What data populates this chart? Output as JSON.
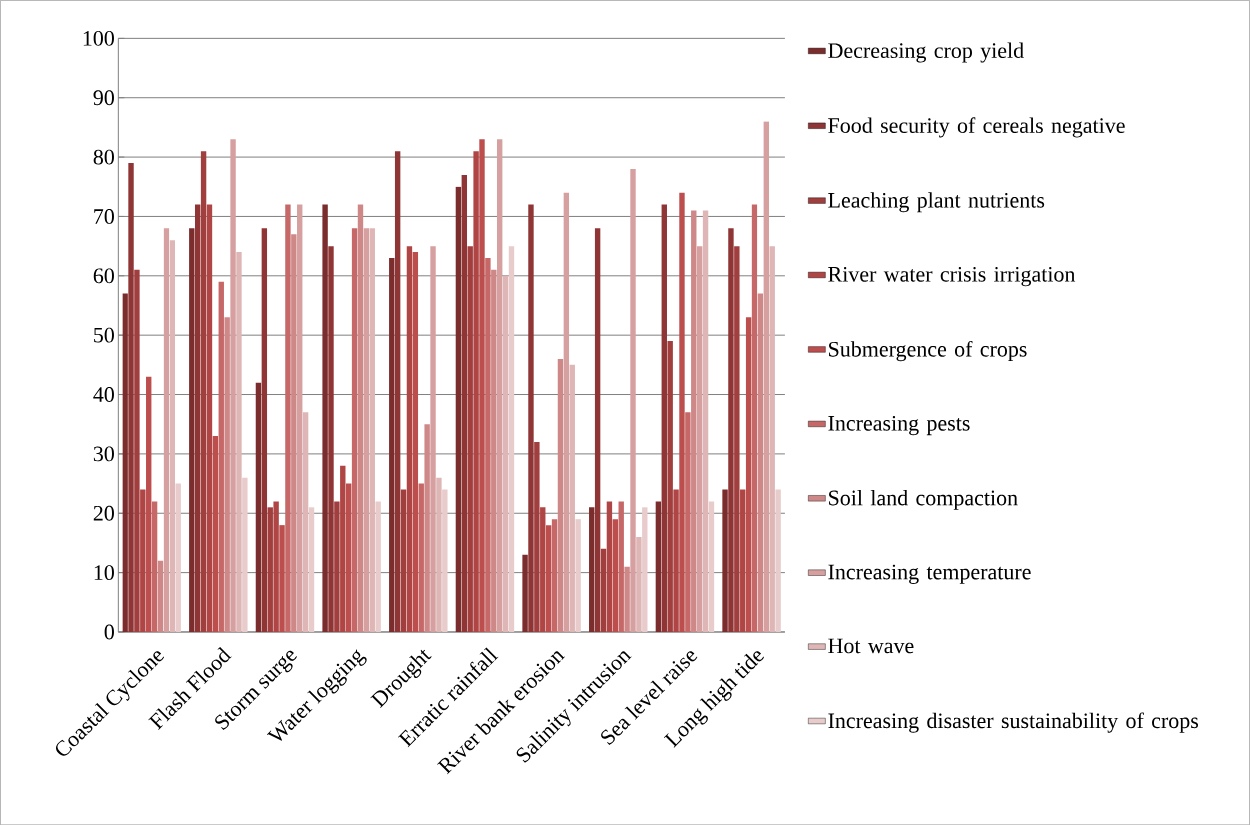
{
  "chart_data": {
    "type": "bar",
    "categories": [
      "Coastal Cyclone",
      "Flash Flood",
      "Storm surge",
      "Water logging",
      "Drought",
      "Erratic rainfall",
      "River bank erosion",
      "Salinity intrusion",
      "Sea level raise",
      "Long high tide"
    ],
    "series": [
      {
        "name": "Decreasing crop yield",
        "color": "#7b2c2c",
        "values": [
          57,
          68,
          42,
          72,
          63,
          75,
          13,
          21,
          22,
          24
        ]
      },
      {
        "name": "Food security of cereals  negative",
        "color": "#8f3535",
        "values": [
          79,
          72,
          68,
          65,
          81,
          77,
          72,
          68,
          72,
          68
        ]
      },
      {
        "name": "Leaching plant nutrients",
        "color": "#a13e3e",
        "values": [
          61,
          81,
          21,
          22,
          24,
          65,
          32,
          14,
          49,
          65
        ]
      },
      {
        "name": "River water crisis  irrigation",
        "color": "#b04545",
        "values": [
          24,
          72,
          22,
          28,
          65,
          81,
          21,
          22,
          24,
          24
        ]
      },
      {
        "name": "Submergence of crops",
        "color": "#bd4e4e",
        "values": [
          43,
          33,
          18,
          25,
          64,
          83,
          18,
          19,
          74,
          53
        ]
      },
      {
        "name": "Increasing pests",
        "color": "#c76868",
        "values": [
          22,
          59,
          72,
          68,
          25,
          63,
          19,
          22,
          37,
          72
        ]
      },
      {
        "name": "Soil land compaction",
        "color": "#cf8888",
        "values": [
          12,
          53,
          67,
          72,
          35,
          61,
          46,
          11,
          71,
          57
        ]
      },
      {
        "name": "Increasing temperature",
        "color": "#d6a0a0",
        "values": [
          68,
          83,
          72,
          68,
          65,
          83,
          74,
          78,
          65,
          86
        ]
      },
      {
        "name": "Hot wave",
        "color": "#dfb6b6",
        "values": [
          66,
          64,
          37,
          68,
          26,
          60,
          45,
          16,
          71,
          65
        ]
      },
      {
        "name": "Increasing disaster sustainability of crops",
        "color": "#e8cccc",
        "values": [
          25,
          26,
          21,
          22,
          24,
          65,
          19,
          21,
          22,
          24
        ]
      }
    ],
    "ylim": [
      0,
      100
    ],
    "yticks": [
      0,
      10,
      20,
      30,
      40,
      50,
      60,
      70,
      80,
      90,
      100
    ],
    "grid": "y",
    "legend": "right"
  }
}
